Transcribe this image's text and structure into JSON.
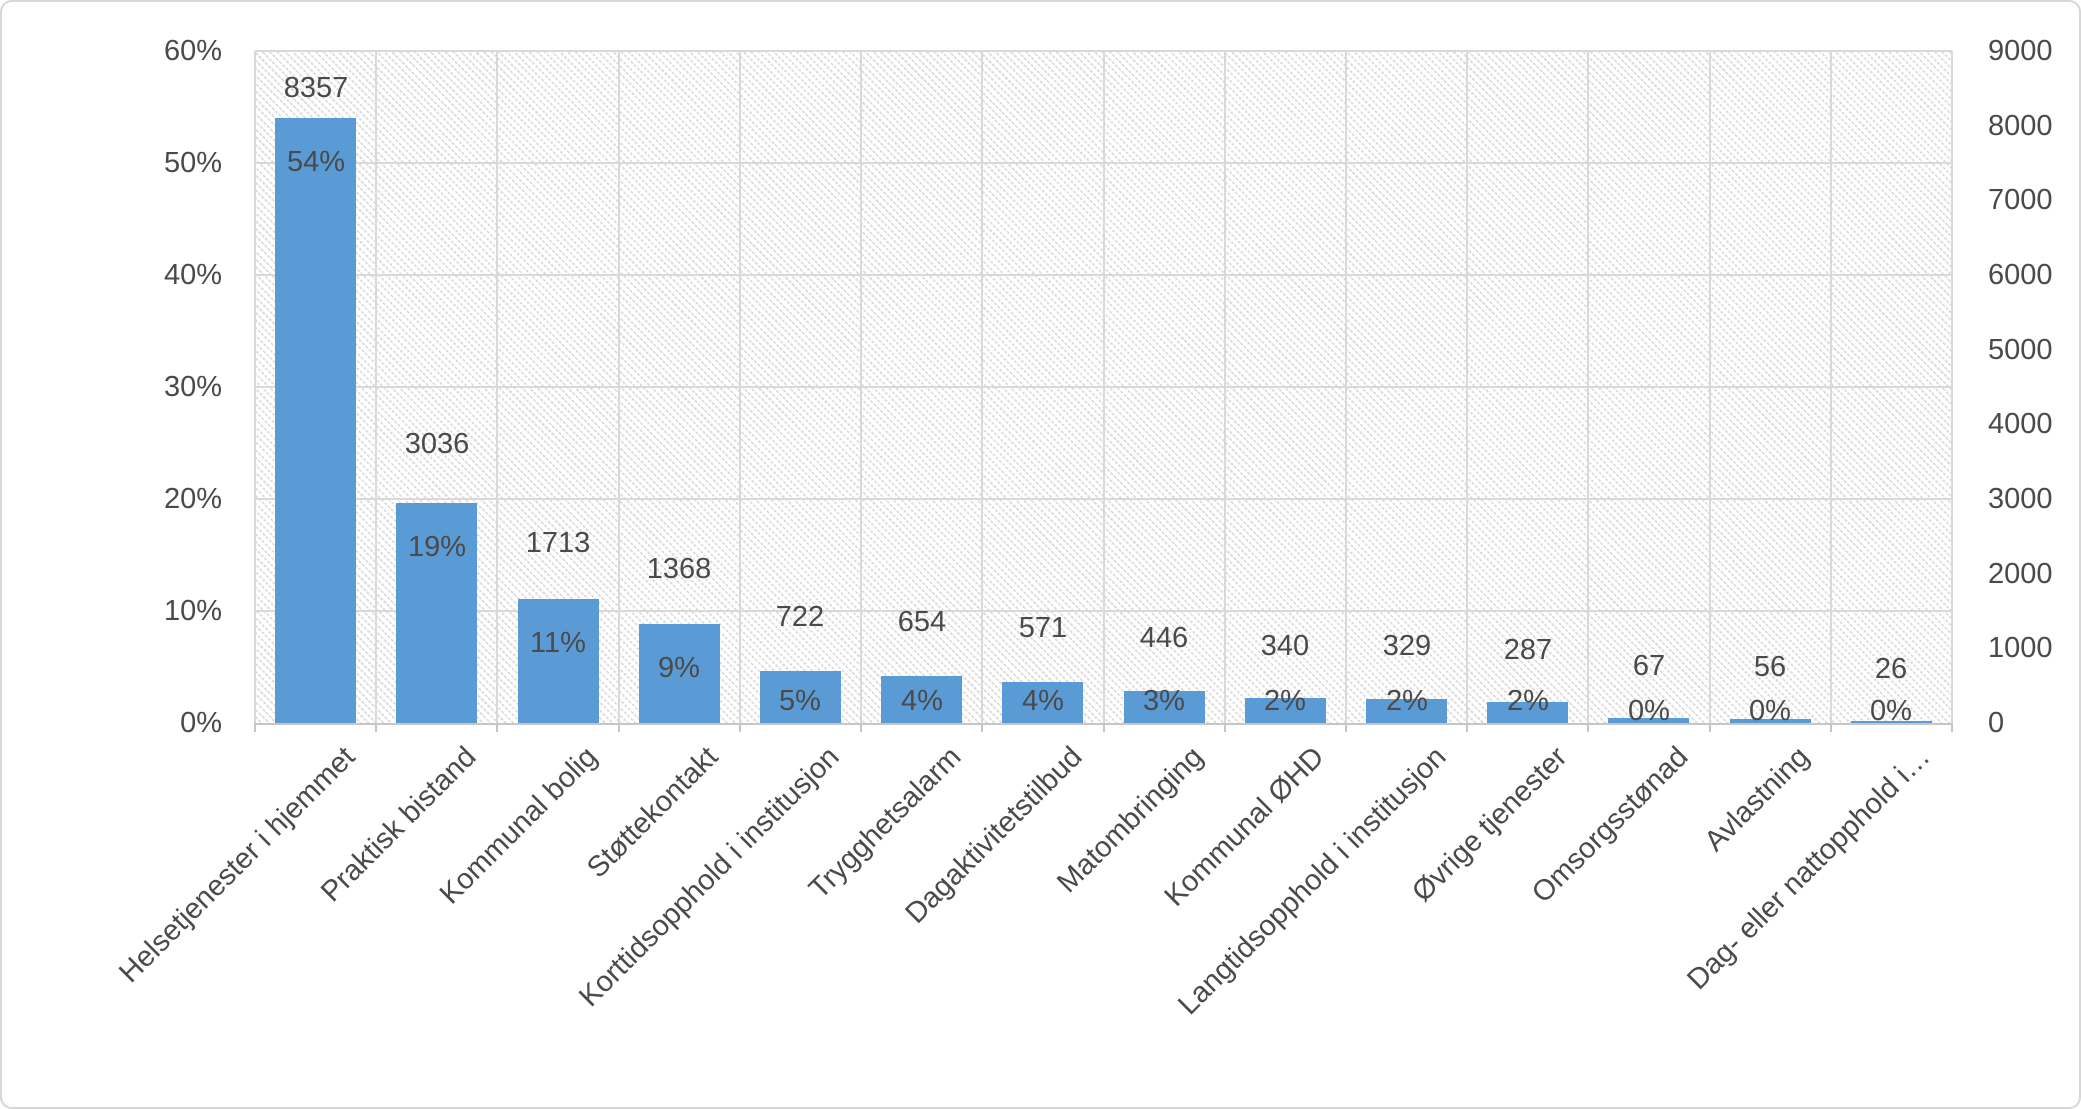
{
  "chart_data": {
    "type": "bar",
    "title": "",
    "legend": "none",
    "grid": true,
    "plot_area_fill": "diagonal-hatch-pattern",
    "categories": [
      "Helsetjenester i hjemmet",
      "Praktisk bistand",
      "Kommunal bolig",
      "Støttekontakt",
      "Korttidsopphold i institusjon",
      "Trygghetsalarm",
      "Dagaktivitetstilbud",
      "Matombringing",
      "Kommunal ØHD",
      "Langtidsopphold i institusjon",
      "Øvrige tjenester",
      "Omsorgsstønad",
      "Avlastning",
      "Dag- eller nattopphold i…"
    ],
    "values": [
      8357,
      3036,
      1713,
      1368,
      722,
      654,
      571,
      446,
      340,
      329,
      287,
      67,
      56,
      26
    ],
    "percent_labels": [
      "54%",
      "19%",
      "11%",
      "9%",
      "5%",
      "4%",
      "4%",
      "3%",
      "2%",
      "2%",
      "2%",
      "0%",
      "0%",
      "0%"
    ],
    "left_axis_ticks": [
      "0%",
      "10%",
      "20%",
      "30%",
      "40%",
      "50%",
      "60%"
    ],
    "left_axis_range": [
      0,
      60
    ],
    "right_axis_ticks": [
      "0",
      "1000",
      "2000",
      "3000",
      "4000",
      "5000",
      "6000",
      "7000",
      "8000",
      "9000"
    ],
    "right_axis_range": [
      0,
      9000
    ]
  },
  "colors": {
    "bar": "#5B9BD5",
    "label_text": "#4A4A4A",
    "gridline": "#D9D9D9",
    "axis_line": "#C6C6C6",
    "hatch": "#DCDCDC",
    "chart_border": "#D7D7D7",
    "background": "#FFFFFF"
  }
}
